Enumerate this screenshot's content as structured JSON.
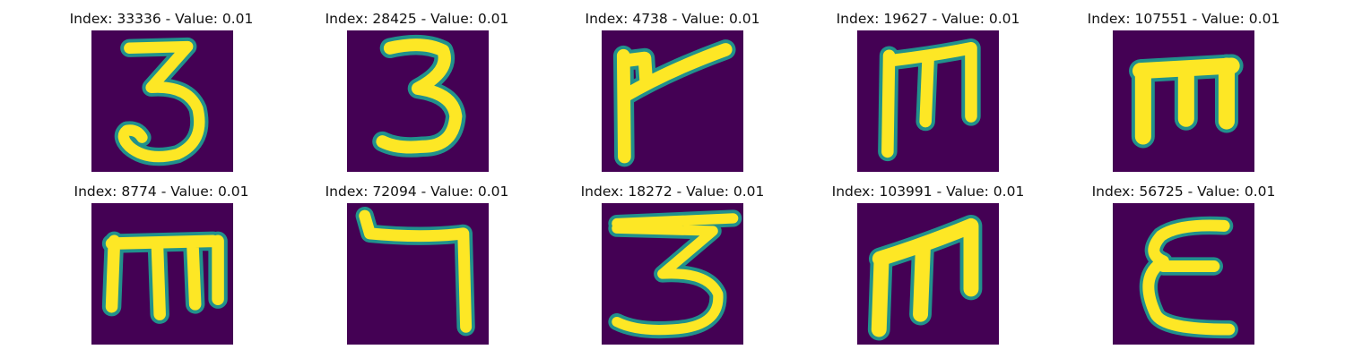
{
  "colors": {
    "background": "#440154",
    "stroke": "#fde725",
    "edge": "#21918c"
  },
  "images": [
    {
      "index": "33336",
      "value": "0.01",
      "title": "Index: 33336 - Value: 0.01",
      "glyph": "3"
    },
    {
      "index": "28425",
      "value": "0.01",
      "title": "Index: 28425 - Value: 0.01",
      "glyph": "3"
    },
    {
      "index": "4738",
      "value": "0.01",
      "title": "Index: 4738 - Value: 0.01",
      "glyph": "flag-stroke"
    },
    {
      "index": "19627",
      "value": "0.01",
      "title": "Index: 19627 - Value: 0.01",
      "glyph": "m"
    },
    {
      "index": "107551",
      "value": "0.01",
      "title": "Index: 107551 - Value: 0.01",
      "glyph": "m"
    },
    {
      "index": "8774",
      "value": "0.01",
      "title": "Index: 8774 - Value: 0.01",
      "glyph": "m"
    },
    {
      "index": "72094",
      "value": "0.01",
      "title": "Index: 72094 - Value: 0.01",
      "glyph": "hook-stroke"
    },
    {
      "index": "18272",
      "value": "0.01",
      "title": "Index: 18272 - Value: 0.01",
      "glyph": "3"
    },
    {
      "index": "103991",
      "value": "0.01",
      "title": "Index: 103991 - Value: 0.01",
      "glyph": "m"
    },
    {
      "index": "56725",
      "value": "0.01",
      "title": "Index: 56725 - Value: 0.01",
      "glyph": "epsilon"
    }
  ]
}
